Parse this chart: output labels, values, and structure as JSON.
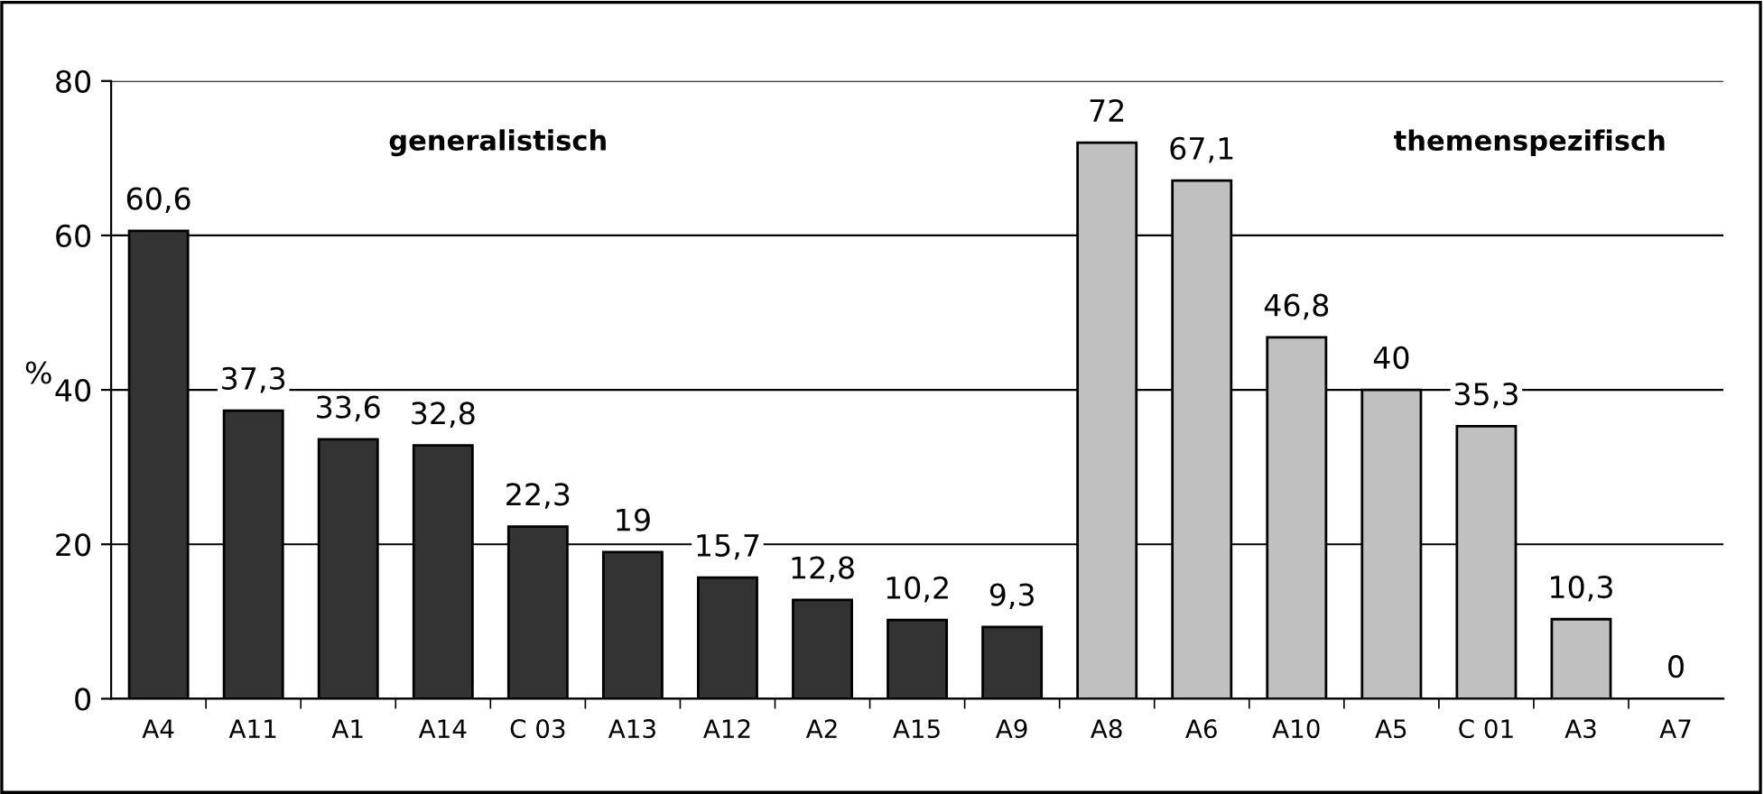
{
  "chart_data": {
    "type": "bar",
    "ylabel": "%",
    "categories": [
      "A4",
      "A11",
      "A1",
      "A14",
      "C 03",
      "A13",
      "A12",
      "A2",
      "A15",
      "A9",
      "A8",
      "A6",
      "A10",
      "A5",
      "C 01",
      "A3",
      "A7"
    ],
    "values": [
      60.6,
      37.3,
      33.6,
      32.8,
      22.3,
      19,
      15.7,
      12.8,
      10.2,
      9.3,
      72,
      67.1,
      46.8,
      40,
      35.3,
      10.3,
      0
    ],
    "value_labels": [
      "60,6",
      "37,3",
      "33,6",
      "32,8",
      "22,3",
      "19",
      "15,7",
      "12,8",
      "10,2",
      "9,3",
      "72",
      "67,1",
      "46,8",
      "40",
      "35,3",
      "10,3",
      "0"
    ],
    "colors": [
      "#333333",
      "#333333",
      "#333333",
      "#333333",
      "#333333",
      "#333333",
      "#333333",
      "#333333",
      "#333333",
      "#333333",
      "#c0c0c0",
      "#c0c0c0",
      "#c0c0c0",
      "#c0c0c0",
      "#c0c0c0",
      "#c0c0c0",
      "#c0c0c0"
    ],
    "annotations": [
      "generalistisch",
      "themenspezifisch"
    ],
    "ylim": [
      0,
      80
    ],
    "yticks": [
      0,
      20,
      40,
      60,
      80
    ],
    "grid": "y",
    "legend": false
  }
}
